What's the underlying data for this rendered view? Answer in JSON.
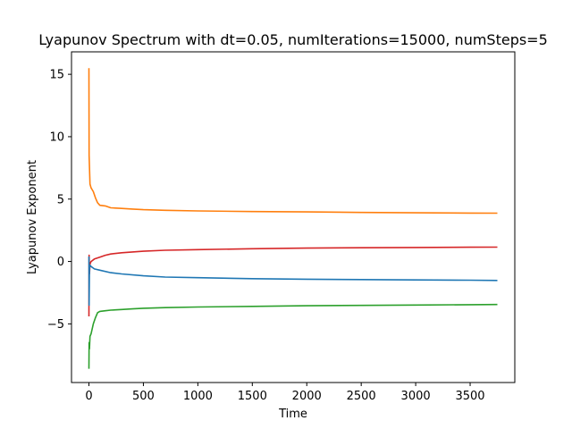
{
  "chart_data": {
    "type": "line",
    "title": "Lyapunov Spectrum with dt=0.05, numIterations=15000, numSteps=5",
    "xlabel": "Time",
    "ylabel": "Lyapunov Exponent",
    "xlim": [
      -160,
      3910
    ],
    "ylim": [
      -9.7,
      16.8
    ],
    "xticks": [
      0,
      500,
      1000,
      1500,
      2000,
      2500,
      3000,
      3500
    ],
    "yticks": [
      -5,
      0,
      5,
      10,
      15
    ],
    "grid": false,
    "legend": "none",
    "series": [
      {
        "color": "#ff7f0e",
        "points": [
          [
            0,
            15.5
          ],
          [
            2,
            8.5
          ],
          [
            5,
            7.6
          ],
          [
            10,
            6.2
          ],
          [
            20,
            5.9
          ],
          [
            40,
            5.6
          ],
          [
            60,
            5.1
          ],
          [
            80,
            4.7
          ],
          [
            100,
            4.5
          ],
          [
            150,
            4.45
          ],
          [
            200,
            4.3
          ],
          [
            300,
            4.25
          ],
          [
            400,
            4.2
          ],
          [
            500,
            4.15
          ],
          [
            700,
            4.1
          ],
          [
            1000,
            4.05
          ],
          [
            1500,
            4.0
          ],
          [
            2000,
            3.97
          ],
          [
            2500,
            3.93
          ],
          [
            3000,
            3.9
          ],
          [
            3500,
            3.88
          ],
          [
            3750,
            3.87
          ]
        ]
      },
      {
        "color": "#d62728",
        "points": [
          [
            0,
            -4.4
          ],
          [
            2,
            0.5
          ],
          [
            5,
            -1.0
          ],
          [
            10,
            -0.2
          ],
          [
            20,
            0.0
          ],
          [
            50,
            0.2
          ],
          [
            100,
            0.35
          ],
          [
            150,
            0.5
          ],
          [
            200,
            0.6
          ],
          [
            300,
            0.7
          ],
          [
            500,
            0.82
          ],
          [
            700,
            0.9
          ],
          [
            1000,
            0.95
          ],
          [
            1500,
            1.02
          ],
          [
            2000,
            1.07
          ],
          [
            2500,
            1.1
          ],
          [
            3000,
            1.12
          ],
          [
            3500,
            1.14
          ],
          [
            3750,
            1.15
          ]
        ]
      },
      {
        "color": "#1f77b4",
        "points": [
          [
            0,
            0.4
          ],
          [
            2,
            -3.5
          ],
          [
            5,
            -0.5
          ],
          [
            10,
            -0.3
          ],
          [
            20,
            -0.4
          ],
          [
            50,
            -0.6
          ],
          [
            100,
            -0.7
          ],
          [
            200,
            -0.9
          ],
          [
            300,
            -1.0
          ],
          [
            500,
            -1.15
          ],
          [
            700,
            -1.25
          ],
          [
            1000,
            -1.3
          ],
          [
            1500,
            -1.38
          ],
          [
            2000,
            -1.42
          ],
          [
            2500,
            -1.45
          ],
          [
            3000,
            -1.48
          ],
          [
            3500,
            -1.5
          ],
          [
            3750,
            -1.52
          ]
        ]
      },
      {
        "color": "#2ca02c",
        "points": [
          [
            0,
            -8.6
          ],
          [
            2,
            -6.5
          ],
          [
            5,
            -7.0
          ],
          [
            10,
            -6.0
          ],
          [
            20,
            -5.8
          ],
          [
            40,
            -5.0
          ],
          [
            60,
            -4.5
          ],
          [
            80,
            -4.1
          ],
          [
            100,
            -4.0
          ],
          [
            150,
            -3.95
          ],
          [
            200,
            -3.9
          ],
          [
            300,
            -3.85
          ],
          [
            400,
            -3.8
          ],
          [
            500,
            -3.75
          ],
          [
            700,
            -3.7
          ],
          [
            1000,
            -3.65
          ],
          [
            1500,
            -3.6
          ],
          [
            2000,
            -3.55
          ],
          [
            2500,
            -3.52
          ],
          [
            3000,
            -3.49
          ],
          [
            3500,
            -3.46
          ],
          [
            3750,
            -3.45
          ]
        ]
      }
    ]
  }
}
